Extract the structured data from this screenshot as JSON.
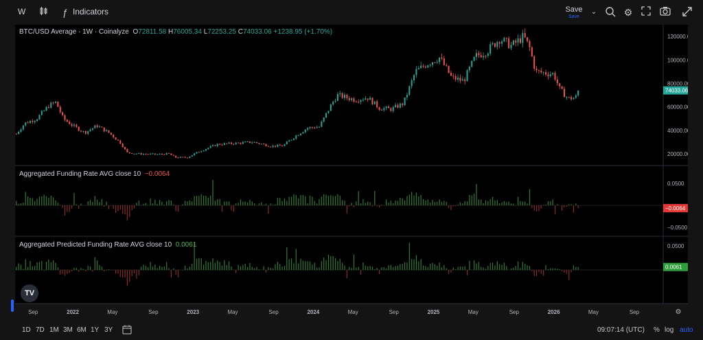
{
  "toolbar": {
    "interval": "W",
    "indicators_label": "Indicators",
    "save_label": "Save",
    "save_sub": "Save"
  },
  "legend": {
    "main_title": "BTC/USD Average · 1W · Coinalyze",
    "o_label": "O",
    "o_val": "72811.58",
    "h_label": "H",
    "h_val": "76005.34",
    "l_label": "L",
    "l_val": "72253.25",
    "c_label": "C",
    "c_val": "74033.06",
    "change": "+1238.95 (+1.70%)",
    "funding_title": "Aggregated Funding Rate AVG close 10",
    "funding_val": "−0.0064",
    "pred_title": "Aggregated Predicted Funding Rate AVG close 10",
    "pred_val": "0.0061"
  },
  "bottom": {
    "ranges": [
      "1D",
      "7D",
      "1M",
      "3M",
      "6M",
      "1Y",
      "3Y"
    ],
    "time": "09:07:14 (UTC)",
    "pct": "%",
    "log": "log",
    "auto": "auto"
  },
  "colors": {
    "up": "#26a69a",
    "down": "#ef5350",
    "vol_up": "#2e7d32",
    "vol_down": "#8b2b2b",
    "bg": "#000000"
  },
  "chart_data": [
    {
      "type": "candlestick",
      "title": "BTC/USD Average · 1W · Coinalyze",
      "ylim": [
        10000,
        130000
      ],
      "y_ticks": [
        "120000.00",
        "100000.00",
        "80000.00",
        "60000.00",
        "40000.00",
        "20000.00"
      ],
      "y_tick_values": [
        120000,
        100000,
        80000,
        60000,
        40000,
        20000
      ],
      "last_value_label": "74033.06",
      "last_value": 74033.06,
      "x_ticks": [
        "Sep",
        "2022",
        "May",
        "Sep",
        "2023",
        "May",
        "Sep",
        "2024",
        "May",
        "Sep",
        "2025",
        "May",
        "Sep",
        "2026",
        "May",
        "Sep"
      ],
      "x_tick_times": [
        2021.67,
        2022.0,
        2022.33,
        2022.67,
        2023.0,
        2023.33,
        2023.67,
        2024.0,
        2024.33,
        2024.67,
        2025.0,
        2025.33,
        2025.67,
        2026.0,
        2026.33,
        2026.67
      ],
      "xlim": [
        2021.52,
        2026.91
      ],
      "anchors": [
        [
          2021.53,
          37000
        ],
        [
          2021.6,
          46000
        ],
        [
          2021.7,
          50000
        ],
        [
          2021.8,
          61000
        ],
        [
          2021.86,
          64000
        ],
        [
          2021.92,
          50000
        ],
        [
          2022.0,
          44000
        ],
        [
          2022.1,
          38000
        ],
        [
          2022.2,
          44000
        ],
        [
          2022.3,
          38000
        ],
        [
          2022.4,
          29000
        ],
        [
          2022.45,
          21000
        ],
        [
          2022.55,
          20000
        ],
        [
          2022.7,
          19500
        ],
        [
          2022.8,
          20000
        ],
        [
          2022.85,
          17000
        ],
        [
          2022.95,
          16800
        ],
        [
          2023.05,
          22000
        ],
        [
          2023.2,
          28000
        ],
        [
          2023.35,
          29000
        ],
        [
          2023.5,
          30000
        ],
        [
          2023.65,
          26500
        ],
        [
          2023.75,
          27000
        ],
        [
          2023.85,
          35000
        ],
        [
          2023.95,
          42000
        ],
        [
          2024.05,
          43000
        ],
        [
          2024.15,
          62000
        ],
        [
          2024.2,
          70000
        ],
        [
          2024.35,
          66000
        ],
        [
          2024.45,
          68000
        ],
        [
          2024.55,
          59000
        ],
        [
          2024.65,
          58000
        ],
        [
          2024.75,
          63000
        ],
        [
          2024.85,
          90000
        ],
        [
          2024.95,
          97000
        ],
        [
          2025.05,
          102000
        ],
        [
          2025.15,
          85000
        ],
        [
          2025.25,
          82000
        ],
        [
          2025.35,
          103000
        ],
        [
          2025.45,
          108000
        ],
        [
          2025.55,
          118000
        ],
        [
          2025.65,
          112000
        ],
        [
          2025.75,
          120000
        ],
        [
          2025.8,
          110000
        ],
        [
          2025.85,
          90000
        ],
        [
          2026.0,
          88000
        ],
        [
          2026.05,
          75000
        ],
        [
          2026.12,
          67000
        ],
        [
          2026.18,
          68000
        ],
        [
          2026.22,
          74033
        ]
      ]
    },
    {
      "type": "bar",
      "title": "Aggregated Funding Rate AVG close 10",
      "last_value_label": "−0.0064",
      "last_value": -0.0064,
      "y_ticks": [
        "0.0500",
        "−0.0500"
      ],
      "y_tick_values": [
        0.05,
        -0.05
      ],
      "ylim": [
        -0.07,
        0.09
      ]
    },
    {
      "type": "bar",
      "title": "Aggregated Predicted Funding Rate AVG close 10",
      "last_value_label": "0.0061",
      "last_value": 0.0061,
      "y_ticks": [
        "0.0500"
      ],
      "y_tick_values": [
        0.05
      ],
      "ylim": [
        -0.07,
        0.07
      ]
    }
  ]
}
